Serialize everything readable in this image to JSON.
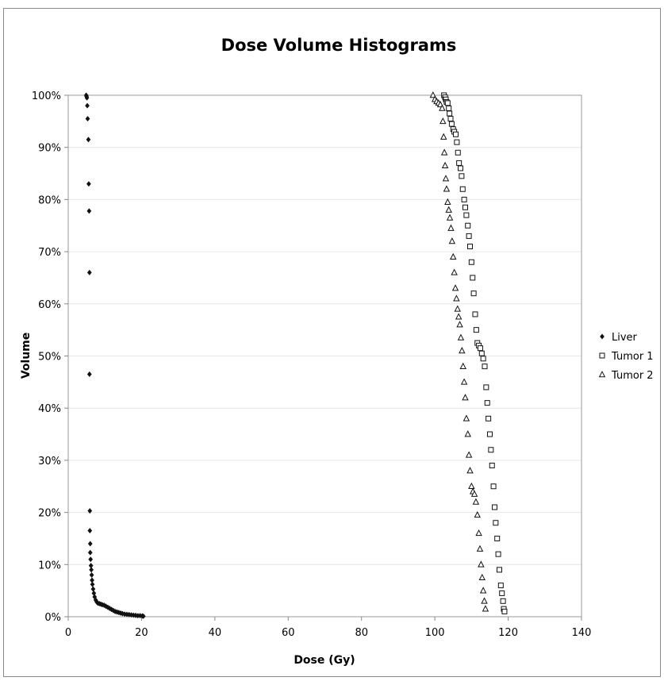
{
  "chart_data": {
    "type": "scatter",
    "title": "Dose Volume Histograms",
    "xlabel": "Dose (Gy)",
    "ylabel": "Volume",
    "xlim": [
      0,
      140
    ],
    "ylim": [
      0,
      100
    ],
    "x_ticks": [
      "0",
      "20",
      "40",
      "60",
      "80",
      "100",
      "120",
      "140"
    ],
    "y_ticks": [
      "0%",
      "10%",
      "20%",
      "30%",
      "40%",
      "50%",
      "60%",
      "70%",
      "80%",
      "90%",
      "100%"
    ],
    "grid": "horizontal",
    "legend_position": "right",
    "series": [
      {
        "name": "Liver",
        "marker": "diamond",
        "x": [
          4.9,
          5.0,
          5.1,
          5.2,
          5.3,
          5.5,
          5.6,
          5.7,
          5.8,
          5.8,
          5.9,
          5.9,
          6.0,
          6.0,
          6.1,
          6.2,
          6.3,
          6.4,
          6.5,
          6.6,
          6.8,
          7.0,
          7.2,
          7.5,
          7.8,
          8.1,
          8.5,
          8.9,
          9.3,
          9.8,
          10.3,
          10.8,
          11.3,
          11.8,
          12.3,
          12.8,
          13.3,
          13.8,
          14.3,
          14.8,
          15.4,
          16.0,
          16.6,
          17.2,
          17.8,
          18.4,
          19.0,
          19.6,
          20.2,
          20.5
        ],
        "y": [
          100,
          99.8,
          99.5,
          98,
          95.5,
          91.5,
          83,
          77.8,
          66,
          46.5,
          20.3,
          16.5,
          14,
          12.3,
          11,
          9.8,
          9,
          8,
          7,
          6.2,
          5.3,
          4.5,
          3.8,
          3.2,
          2.8,
          2.6,
          2.5,
          2.4,
          2.3,
          2.2,
          2.0,
          1.8,
          1.6,
          1.4,
          1.2,
          1.0,
          0.9,
          0.8,
          0.7,
          0.6,
          0.5,
          0.45,
          0.4,
          0.35,
          0.3,
          0.25,
          0.2,
          0.2,
          0.15,
          0.1
        ]
      },
      {
        "name": "Tumor 1",
        "marker": "square",
        "x": [
          102.5,
          102.8,
          103.0,
          103.2,
          103.5,
          103.8,
          104.0,
          104.3,
          104.6,
          105.0,
          105.3,
          105.7,
          106.0,
          106.3,
          106.6,
          107.0,
          107.3,
          107.6,
          108.0,
          108.3,
          108.6,
          109.0,
          109.3,
          109.6,
          110.0,
          110.3,
          110.6,
          111.0,
          111.3,
          111.6,
          112.0,
          112.4,
          112.8,
          113.2,
          113.6,
          114.0,
          114.3,
          114.6,
          115.0,
          115.3,
          115.6,
          116.0,
          116.3,
          116.6,
          117.0,
          117.3,
          117.6,
          118.0,
          118.3,
          118.6,
          118.8,
          119.0
        ],
        "y": [
          100,
          99.6,
          99.2,
          98.7,
          98.5,
          97.5,
          96.5,
          95.5,
          94.5,
          93.5,
          93,
          92.5,
          91,
          89,
          87,
          86,
          84.5,
          82,
          80,
          78.5,
          77,
          75,
          73,
          71,
          68,
          65,
          62,
          58,
          55,
          52.5,
          52,
          51.5,
          50.5,
          49.5,
          48,
          44,
          41,
          38,
          35,
          32,
          29,
          25,
          21,
          18,
          15,
          12,
          9,
          6,
          4.5,
          3,
          1.5,
          1
        ]
      },
      {
        "name": "Tumor 2",
        "marker": "triangle",
        "x": [
          99.5,
          100.0,
          100.5,
          101.0,
          101.5,
          102.0,
          102.2,
          102.4,
          102.6,
          102.8,
          103.0,
          103.2,
          103.5,
          103.8,
          104.1,
          104.4,
          104.7,
          105.0,
          105.3,
          105.6,
          105.9,
          106.2,
          106.5,
          106.8,
          107.1,
          107.4,
          107.7,
          108.0,
          108.3,
          108.6,
          109.0,
          109.3,
          109.6,
          110.0,
          110.4,
          110.8,
          111.2,
          111.6,
          112.0,
          112.3,
          112.6,
          112.9,
          113.2,
          113.5,
          113.8
        ],
        "y": [
          100,
          99.2,
          98.8,
          98.5,
          98.2,
          97.5,
          95,
          92,
          89,
          86.5,
          84,
          82,
          79.5,
          78,
          76.5,
          74.5,
          72,
          69,
          66,
          63,
          61,
          59,
          57.5,
          56,
          53.5,
          51,
          48,
          45,
          42,
          38,
          35,
          31,
          28,
          25,
          24,
          23.5,
          22,
          19.5,
          16,
          13,
          10,
          7.5,
          5,
          3,
          1.5
        ]
      }
    ]
  }
}
